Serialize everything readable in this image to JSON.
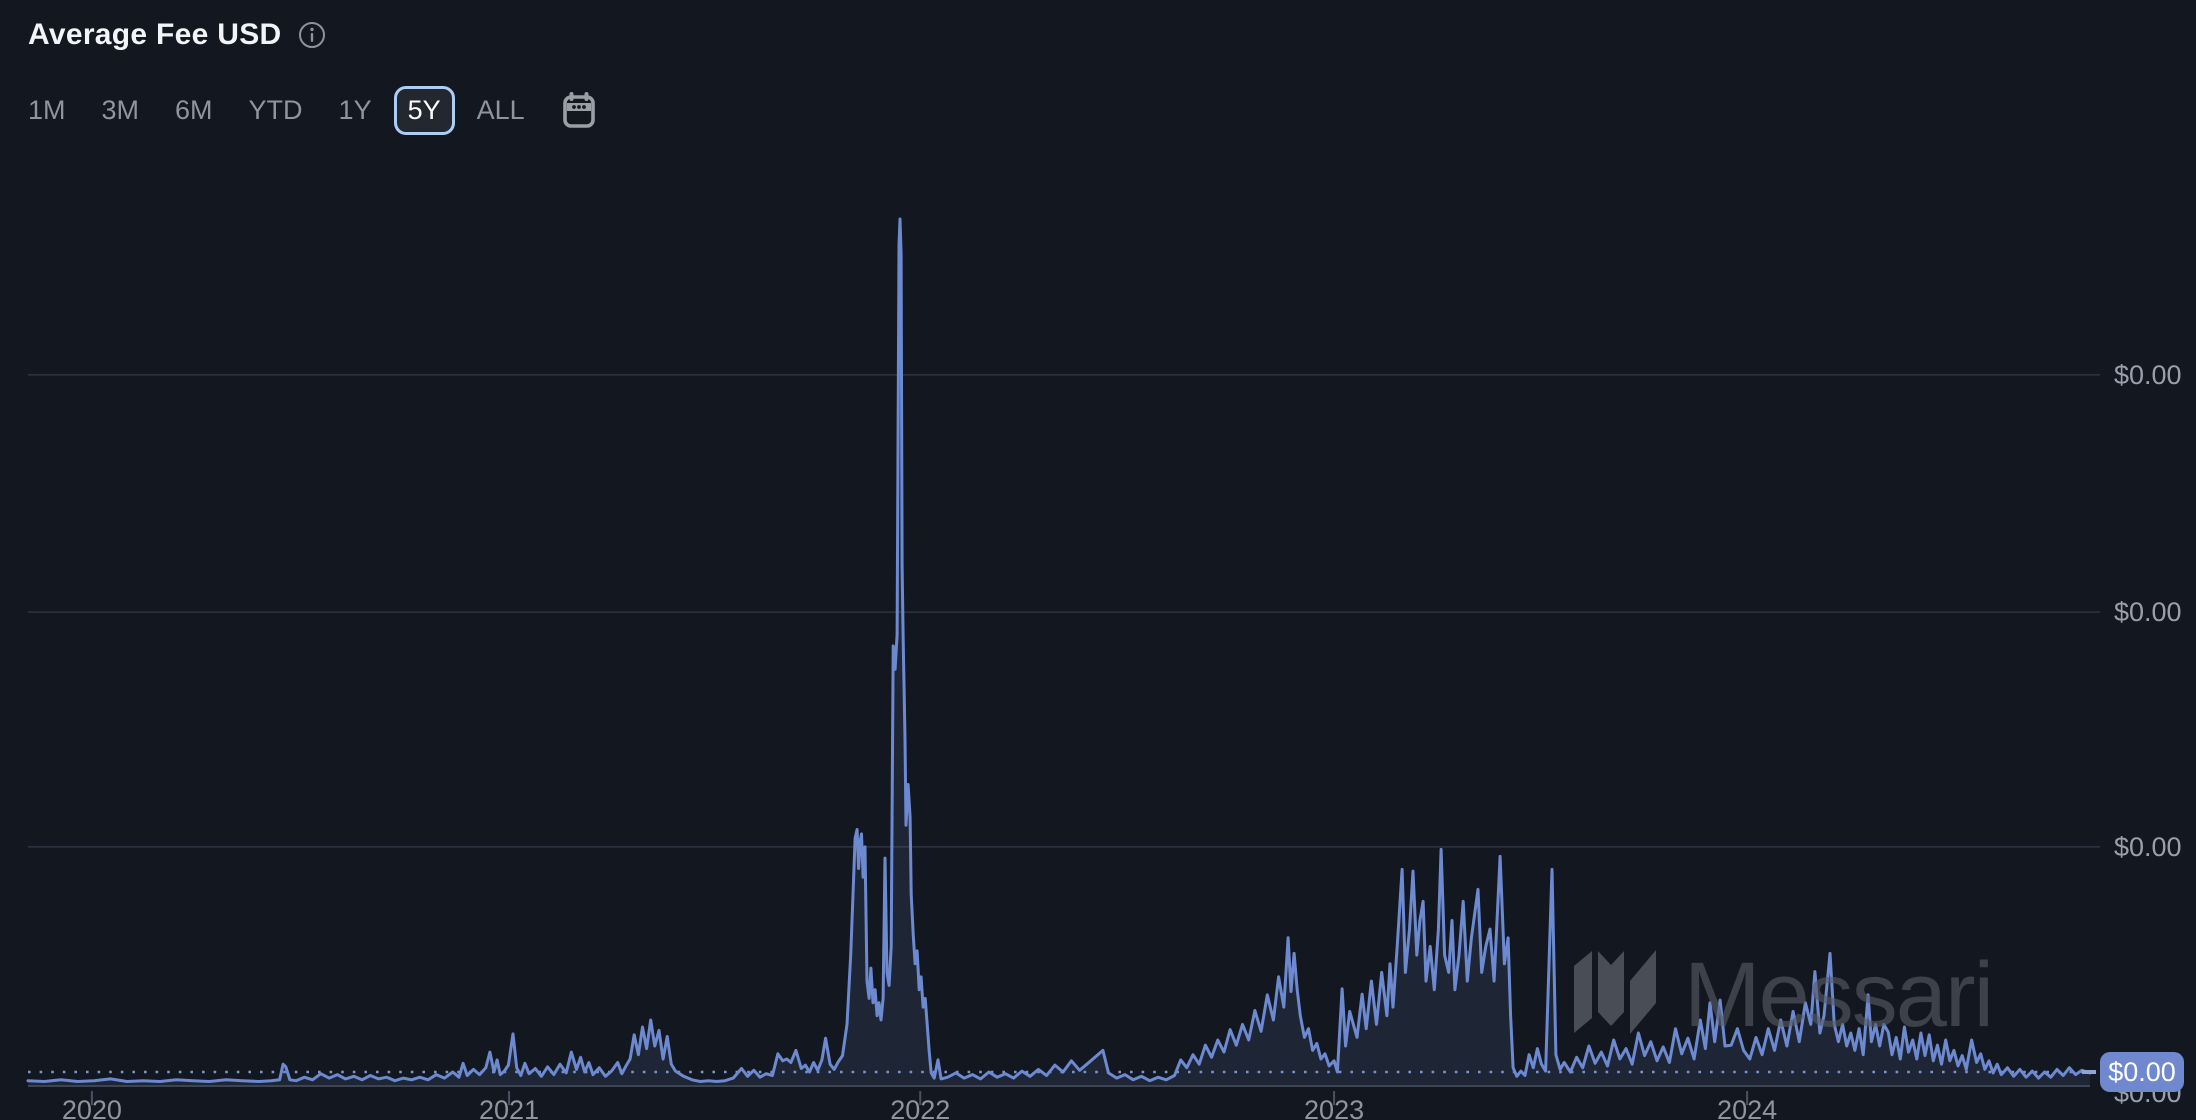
{
  "header": {
    "title": "Average Fee USD",
    "info_icon": "info-circle"
  },
  "toolbar": {
    "ranges": [
      {
        "label": "1M",
        "selected": false
      },
      {
        "label": "3M",
        "selected": false
      },
      {
        "label": "6M",
        "selected": false
      },
      {
        "label": "YTD",
        "selected": false
      },
      {
        "label": "1Y",
        "selected": false
      },
      {
        "label": "5Y",
        "selected": true
      },
      {
        "label": "ALL",
        "selected": false
      }
    ],
    "calendar_icon": "calendar"
  },
  "watermark": {
    "text": "Messari",
    "logo_icon": "messari-logo-mark"
  },
  "colors": {
    "background": "#131720",
    "line": "#6d89d0",
    "area_fill": "rgba(109,137,208,0.13)",
    "grid": "#2f3542",
    "axis_text": "#99a0ab",
    "muted_text": "#8f949d",
    "title_text": "#f2f4f7",
    "selected_border": "#aecdf5",
    "badge_bg": "#6f88ce",
    "badge_text": "#ffffff",
    "dotted_line": "#89a3de",
    "baseline": "#3d4452",
    "tick": "#4a5160",
    "watermark": "#565b64"
  },
  "chart_data": {
    "type": "line",
    "title": "Average Fee USD",
    "series_name": "Average Fee USD",
    "value_scale": "percent_of_peak_value",
    "note": "Values are sub-cent; every y-axis label renders as $0.00. Series values below are percent of the peak (peak = late-2021 spike = 100).",
    "layout": {
      "grid": "horizontal",
      "legend": false,
      "y_axis_side": "right"
    },
    "x_axis": {
      "ticks": [
        {
          "label": "2020",
          "f": 0.031
        },
        {
          "label": "2021",
          "f": 0.2333
        },
        {
          "label": "2022",
          "f": 0.4327
        },
        {
          "label": "2023",
          "f": 0.6334
        },
        {
          "label": "2024",
          "f": 0.8337
        }
      ]
    },
    "y_axis": {
      "gridlines": [
        {
          "label": "$0.00",
          "v": 82.0
        },
        {
          "label": "$0.00",
          "v": 54.6
        },
        {
          "label": "$0.00",
          "v": 27.5
        }
      ],
      "baseline_label": "$0.00"
    },
    "current_value": {
      "label": "$0.00",
      "v": 1.5
    },
    "points": [
      [
        0.0,
        0.5
      ],
      [
        0.008,
        0.4
      ],
      [
        0.016,
        0.6
      ],
      [
        0.024,
        0.4
      ],
      [
        0.032,
        0.5
      ],
      [
        0.04,
        0.7
      ],
      [
        0.048,
        0.4
      ],
      [
        0.056,
        0.5
      ],
      [
        0.064,
        0.4
      ],
      [
        0.072,
        0.6
      ],
      [
        0.08,
        0.5
      ],
      [
        0.088,
        0.4
      ],
      [
        0.096,
        0.6
      ],
      [
        0.104,
        0.5
      ],
      [
        0.112,
        0.4
      ],
      [
        0.118,
        0.5
      ],
      [
        0.122,
        0.6
      ],
      [
        0.1237,
        2.4
      ],
      [
        0.125,
        2.1
      ],
      [
        0.127,
        0.6
      ],
      [
        0.13,
        0.5
      ],
      [
        0.134,
        0.9
      ],
      [
        0.138,
        0.6
      ],
      [
        0.142,
        1.3
      ],
      [
        0.146,
        0.8
      ],
      [
        0.15,
        1.2
      ],
      [
        0.154,
        0.7
      ],
      [
        0.158,
        1.0
      ],
      [
        0.162,
        0.6
      ],
      [
        0.166,
        1.1
      ],
      [
        0.17,
        0.7
      ],
      [
        0.174,
        0.9
      ],
      [
        0.178,
        0.5
      ],
      [
        0.182,
        0.8
      ],
      [
        0.186,
        0.6
      ],
      [
        0.19,
        0.9
      ],
      [
        0.194,
        0.6
      ],
      [
        0.198,
        1.2
      ],
      [
        0.202,
        0.8
      ],
      [
        0.206,
        1.5
      ],
      [
        0.209,
        0.9
      ],
      [
        0.211,
        2.5
      ],
      [
        0.213,
        1.1
      ],
      [
        0.216,
        1.8
      ],
      [
        0.219,
        1.2
      ],
      [
        0.222,
        2.0
      ],
      [
        0.224,
        3.8
      ],
      [
        0.226,
        1.5
      ],
      [
        0.2275,
        2.9
      ],
      [
        0.229,
        1.2
      ],
      [
        0.231,
        1.6
      ],
      [
        0.233,
        2.3
      ],
      [
        0.2352,
        5.9
      ],
      [
        0.237,
        2.0
      ],
      [
        0.239,
        1.1
      ],
      [
        0.241,
        2.5
      ],
      [
        0.243,
        1.3
      ],
      [
        0.246,
        1.9
      ],
      [
        0.249,
        1.0
      ],
      [
        0.252,
        2.1
      ],
      [
        0.255,
        1.2
      ],
      [
        0.258,
        2.4
      ],
      [
        0.261,
        1.4
      ],
      [
        0.2635,
        3.8
      ],
      [
        0.266,
        1.8
      ],
      [
        0.268,
        3.2
      ],
      [
        0.27,
        1.5
      ],
      [
        0.272,
        2.6
      ],
      [
        0.274,
        1.2
      ],
      [
        0.277,
        2.0
      ],
      [
        0.28,
        1.0
      ],
      [
        0.283,
        1.6
      ],
      [
        0.286,
        2.6
      ],
      [
        0.288,
        1.3
      ],
      [
        0.29,
        2.2
      ],
      [
        0.292,
        3.0
      ],
      [
        0.294,
        5.8
      ],
      [
        0.296,
        3.5
      ],
      [
        0.298,
        6.7
      ],
      [
        0.3,
        4.2
      ],
      [
        0.302,
        7.5
      ],
      [
        0.304,
        4.5
      ],
      [
        0.306,
        6.3
      ],
      [
        0.308,
        3.0
      ],
      [
        0.31,
        5.6
      ],
      [
        0.312,
        2.4
      ],
      [
        0.314,
        1.6
      ],
      [
        0.318,
        1.0
      ],
      [
        0.322,
        0.6
      ],
      [
        0.326,
        0.4
      ],
      [
        0.33,
        0.5
      ],
      [
        0.334,
        0.4
      ],
      [
        0.338,
        0.5
      ],
      [
        0.342,
        0.8
      ],
      [
        0.346,
        1.9
      ],
      [
        0.349,
        1.0
      ],
      [
        0.352,
        1.7
      ],
      [
        0.355,
        0.9
      ],
      [
        0.358,
        1.3
      ],
      [
        0.361,
        1.1
      ],
      [
        0.3637,
        3.6
      ],
      [
        0.366,
        2.8
      ],
      [
        0.368,
        3.0
      ],
      [
        0.37,
        2.6
      ],
      [
        0.3724,
        4.0
      ],
      [
        0.375,
        1.9
      ],
      [
        0.377,
        2.3
      ],
      [
        0.379,
        1.5
      ],
      [
        0.381,
        2.6
      ],
      [
        0.383,
        1.7
      ],
      [
        0.385,
        2.9
      ],
      [
        0.3868,
        5.4
      ],
      [
        0.389,
        2.4
      ],
      [
        0.391,
        1.8
      ],
      [
        0.393,
        2.7
      ],
      [
        0.395,
        3.4
      ],
      [
        0.3972,
        7.0
      ],
      [
        0.399,
        15.0
      ],
      [
        0.4001,
        22.0
      ],
      [
        0.4011,
        28.5
      ],
      [
        0.4021,
        29.5
      ],
      [
        0.4028,
        25.0
      ],
      [
        0.4035,
        28.0
      ],
      [
        0.4042,
        29.0
      ],
      [
        0.405,
        24.0
      ],
      [
        0.4059,
        27.5
      ],
      [
        0.4069,
        12.0
      ],
      [
        0.4079,
        10.0
      ],
      [
        0.4088,
        13.5
      ],
      [
        0.4098,
        9.5
      ],
      [
        0.4108,
        11.0
      ],
      [
        0.4118,
        8.0
      ],
      [
        0.4127,
        9.5
      ],
      [
        0.4137,
        7.5
      ],
      [
        0.4147,
        10.0
      ],
      [
        0.4156,
        26.2
      ],
      [
        0.4166,
        13.0
      ],
      [
        0.4176,
        11.5
      ],
      [
        0.4186,
        16.0
      ],
      [
        0.4196,
        50.7
      ],
      [
        0.4205,
        48.0
      ],
      [
        0.4215,
        52.0
      ],
      [
        0.4224,
        97.0
      ],
      [
        0.4229,
        100.0
      ],
      [
        0.4234,
        96.0
      ],
      [
        0.4239,
        60.0
      ],
      [
        0.4244,
        52.0
      ],
      [
        0.4253,
        40.0
      ],
      [
        0.4258,
        30.0
      ],
      [
        0.4268,
        34.7
      ],
      [
        0.4278,
        30.9
      ],
      [
        0.4283,
        22.0
      ],
      [
        0.4293,
        17.4
      ],
      [
        0.4302,
        14.0
      ],
      [
        0.4312,
        15.5
      ],
      [
        0.4322,
        11.0
      ],
      [
        0.4331,
        12.5
      ],
      [
        0.4341,
        9.0
      ],
      [
        0.4351,
        10.0
      ],
      [
        0.4361,
        7.0
      ],
      [
        0.437,
        4.0
      ],
      [
        0.438,
        1.4
      ],
      [
        0.4395,
        0.8
      ],
      [
        0.4413,
        2.9
      ],
      [
        0.4428,
        0.7
      ],
      [
        0.446,
        0.9
      ],
      [
        0.45,
        1.4
      ],
      [
        0.454,
        0.8
      ],
      [
        0.458,
        1.2
      ],
      [
        0.462,
        0.7
      ],
      [
        0.466,
        1.5
      ],
      [
        0.47,
        0.9
      ],
      [
        0.474,
        1.3
      ],
      [
        0.478,
        0.8
      ],
      [
        0.482,
        1.6
      ],
      [
        0.486,
        1.0
      ],
      [
        0.49,
        1.8
      ],
      [
        0.494,
        1.1
      ],
      [
        0.498,
        2.3
      ],
      [
        0.502,
        1.5
      ],
      [
        0.506,
        2.8
      ],
      [
        0.51,
        1.7
      ],
      [
        0.514,
        2.5
      ],
      [
        0.5213,
        4.0
      ],
      [
        0.524,
        1.4
      ],
      [
        0.528,
        0.8
      ],
      [
        0.532,
        1.2
      ],
      [
        0.536,
        0.6
      ],
      [
        0.54,
        1.0
      ],
      [
        0.544,
        0.5
      ],
      [
        0.548,
        0.9
      ],
      [
        0.552,
        0.6
      ],
      [
        0.556,
        1.1
      ],
      [
        0.559,
        2.9
      ],
      [
        0.562,
        2.0
      ],
      [
        0.565,
        3.5
      ],
      [
        0.568,
        2.4
      ],
      [
        0.571,
        4.6
      ],
      [
        0.574,
        3.2
      ],
      [
        0.577,
        5.2
      ],
      [
        0.58,
        3.8
      ],
      [
        0.583,
        6.4
      ],
      [
        0.586,
        4.6
      ],
      [
        0.589,
        7.0
      ],
      [
        0.592,
        5.2
      ],
      [
        0.595,
        8.6
      ],
      [
        0.598,
        6.2
      ],
      [
        0.601,
        10.4
      ],
      [
        0.604,
        7.5
      ],
      [
        0.6065,
        12.5
      ],
      [
        0.609,
        9.0
      ],
      [
        0.6111,
        17.0
      ],
      [
        0.6125,
        10.8
      ],
      [
        0.614,
        15.2
      ],
      [
        0.6155,
        11.0
      ],
      [
        0.617,
        8.0
      ],
      [
        0.619,
        5.5
      ],
      [
        0.621,
        6.5
      ],
      [
        0.623,
        4.0
      ],
      [
        0.625,
        4.8
      ],
      [
        0.627,
        3.0
      ],
      [
        0.629,
        3.6
      ],
      [
        0.631,
        2.2
      ],
      [
        0.6334,
        2.8
      ],
      [
        0.635,
        1.5
      ],
      [
        0.6373,
        11.1
      ],
      [
        0.639,
        4.5
      ],
      [
        0.641,
        8.5
      ],
      [
        0.6445,
        5.5
      ],
      [
        0.647,
        10.5
      ],
      [
        0.649,
        6.5
      ],
      [
        0.6515,
        12.0
      ],
      [
        0.654,
        7.0
      ],
      [
        0.6565,
        13.0
      ],
      [
        0.659,
        8.0
      ],
      [
        0.6605,
        14.0
      ],
      [
        0.662,
        9.0
      ],
      [
        0.664,
        16.0
      ],
      [
        0.6664,
        24.9
      ],
      [
        0.668,
        13.0
      ],
      [
        0.67,
        18.0
      ],
      [
        0.6717,
        24.7
      ],
      [
        0.6735,
        15.0
      ],
      [
        0.675,
        19.0
      ],
      [
        0.6766,
        21.2
      ],
      [
        0.678,
        12.0
      ],
      [
        0.68,
        16.0
      ],
      [
        0.682,
        11.0
      ],
      [
        0.684,
        18.0
      ],
      [
        0.6853,
        27.2
      ],
      [
        0.687,
        15.0
      ],
      [
        0.689,
        13.0
      ],
      [
        0.6906,
        19.0
      ],
      [
        0.692,
        11.0
      ],
      [
        0.694,
        15.0
      ],
      [
        0.696,
        21.2
      ],
      [
        0.698,
        12.0
      ],
      [
        0.7,
        17.0
      ],
      [
        0.7032,
        22.6
      ],
      [
        0.705,
        13.0
      ],
      [
        0.707,
        16.0
      ],
      [
        0.709,
        18.0
      ],
      [
        0.711,
        12.0
      ],
      [
        0.7139,
        26.4
      ],
      [
        0.716,
        14.0
      ],
      [
        0.7178,
        17.0
      ],
      [
        0.719,
        8.0
      ],
      [
        0.7202,
        2.0
      ],
      [
        0.722,
        1.0
      ],
      [
        0.724,
        1.6
      ],
      [
        0.726,
        1.1
      ],
      [
        0.728,
        3.5
      ],
      [
        0.73,
        2.0
      ],
      [
        0.732,
        4.2
      ],
      [
        0.734,
        2.4
      ],
      [
        0.736,
        1.6
      ],
      [
        0.7391,
        24.9
      ],
      [
        0.741,
        3.5
      ],
      [
        0.743,
        1.8
      ],
      [
        0.745,
        2.6
      ],
      [
        0.748,
        1.5
      ],
      [
        0.751,
        3.2
      ],
      [
        0.754,
        2.0
      ],
      [
        0.757,
        4.5
      ],
      [
        0.76,
        2.5
      ],
      [
        0.763,
        3.8
      ],
      [
        0.766,
        2.2
      ],
      [
        0.769,
        5.2
      ],
      [
        0.772,
        3.0
      ],
      [
        0.775,
        4.2
      ],
      [
        0.778,
        2.4
      ],
      [
        0.781,
        6.0
      ],
      [
        0.784,
        3.4
      ],
      [
        0.787,
        5.0
      ],
      [
        0.79,
        2.8
      ],
      [
        0.793,
        4.4
      ],
      [
        0.796,
        2.6
      ],
      [
        0.799,
        6.5
      ],
      [
        0.802,
        3.6
      ],
      [
        0.805,
        5.4
      ],
      [
        0.808,
        3.0
      ],
      [
        0.811,
        7.5
      ],
      [
        0.8135,
        4.2
      ],
      [
        0.8157,
        9.5
      ],
      [
        0.818,
        5.0
      ],
      [
        0.8206,
        9.8
      ],
      [
        0.823,
        4.5
      ],
      [
        0.826,
        4.6
      ],
      [
        0.829,
        6.5
      ],
      [
        0.832,
        4.0
      ],
      [
        0.835,
        3.0
      ],
      [
        0.838,
        5.5
      ],
      [
        0.841,
        3.5
      ],
      [
        0.844,
        6.5
      ],
      [
        0.847,
        4.0
      ],
      [
        0.85,
        7.5
      ],
      [
        0.853,
        4.5
      ],
      [
        0.856,
        8.5
      ],
      [
        0.859,
        5.0
      ],
      [
        0.862,
        9.5
      ],
      [
        0.8646,
        7.0
      ],
      [
        0.8666,
        13.1
      ],
      [
        0.869,
        6.0
      ],
      [
        0.871,
        8.0
      ],
      [
        0.8739,
        15.2
      ],
      [
        0.876,
        7.0
      ],
      [
        0.878,
        5.0
      ],
      [
        0.88,
        7.0
      ],
      [
        0.882,
        4.5
      ],
      [
        0.884,
        6.0
      ],
      [
        0.886,
        4.0
      ],
      [
        0.888,
        6.5
      ],
      [
        0.89,
        3.5
      ],
      [
        0.8924,
        10.4
      ],
      [
        0.894,
        5.0
      ],
      [
        0.896,
        7.0
      ],
      [
        0.898,
        4.5
      ],
      [
        0.9,
        7.0
      ],
      [
        0.9022,
        6.1
      ],
      [
        0.904,
        3.5
      ],
      [
        0.906,
        5.5
      ],
      [
        0.908,
        3.0
      ],
      [
        0.91,
        6.7
      ],
      [
        0.912,
        3.8
      ],
      [
        0.914,
        5.2
      ],
      [
        0.916,
        3.0
      ],
      [
        0.918,
        6.0
      ],
      [
        0.92,
        3.4
      ],
      [
        0.922,
        5.8
      ],
      [
        0.924,
        2.8
      ],
      [
        0.926,
        4.6
      ],
      [
        0.928,
        2.4
      ],
      [
        0.93,
        5.2
      ],
      [
        0.932,
        2.8
      ],
      [
        0.934,
        4.0
      ],
      [
        0.936,
        2.2
      ],
      [
        0.938,
        3.4
      ],
      [
        0.94,
        1.8
      ],
      [
        0.9426,
        5.2
      ],
      [
        0.945,
        2.6
      ],
      [
        0.947,
        3.6
      ],
      [
        0.949,
        1.8
      ],
      [
        0.951,
        2.8
      ],
      [
        0.953,
        1.4
      ],
      [
        0.955,
        2.4
      ],
      [
        0.957,
        1.2
      ],
      [
        0.96,
        2.0
      ],
      [
        0.963,
        1.0
      ],
      [
        0.966,
        1.8
      ],
      [
        0.969,
        0.9
      ],
      [
        0.972,
        1.6
      ],
      [
        0.975,
        0.8
      ],
      [
        0.978,
        1.5
      ],
      [
        0.981,
        0.9
      ],
      [
        0.984,
        1.8
      ],
      [
        0.987,
        1.1
      ],
      [
        0.99,
        2.0
      ],
      [
        0.993,
        1.2
      ],
      [
        0.996,
        1.7
      ],
      [
        1.0,
        1.4
      ]
    ]
  }
}
